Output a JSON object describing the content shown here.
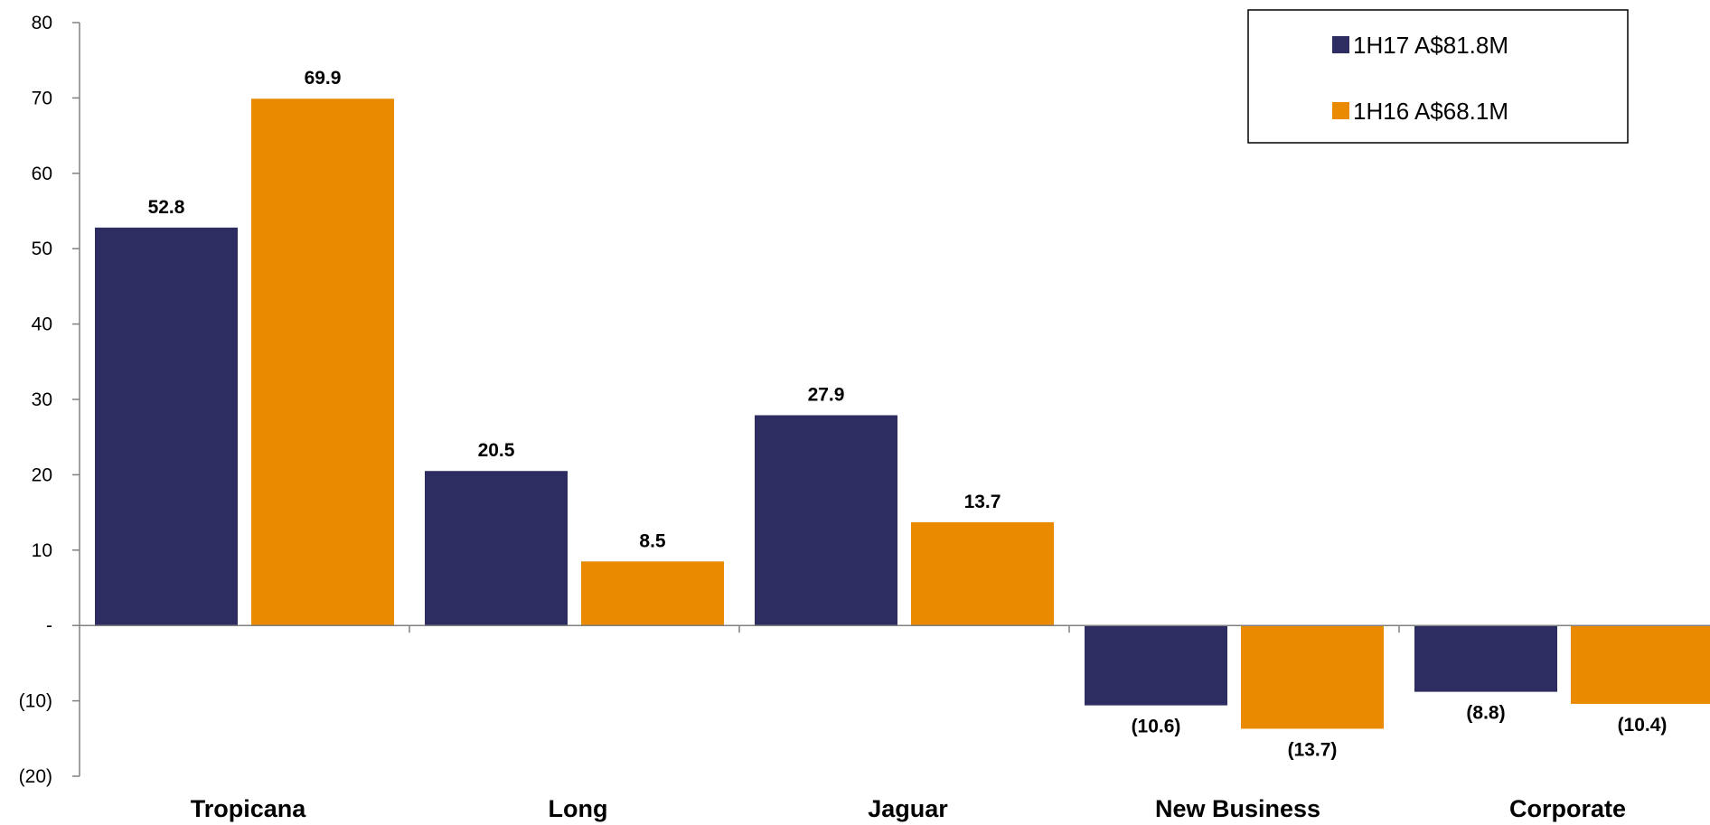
{
  "chart_data": {
    "type": "bar",
    "categories": [
      "Tropicana",
      "Long",
      "Jaguar",
      "New Business",
      "Corporate"
    ],
    "series": [
      {
        "name": "1H17 A$81.8M",
        "values": [
          52.8,
          20.5,
          27.9,
          -10.6,
          -8.8
        ],
        "color": "#2E2D62",
        "labels": [
          "52.8",
          "20.5",
          "27.9",
          "(10.6)",
          "(8.8)"
        ]
      },
      {
        "name": "1H16 A$68.1M",
        "values": [
          69.9,
          8.5,
          13.7,
          -13.7,
          -10.4
        ],
        "color": "#EA8A00",
        "labels": [
          "69.9",
          "8.5",
          "13.7",
          "(13.7)",
          "(10.4)"
        ]
      }
    ],
    "ylim": [
      -20,
      80
    ],
    "yticks": [
      {
        "value": 80,
        "label": "80"
      },
      {
        "value": 70,
        "label": "70"
      },
      {
        "value": 60,
        "label": "60"
      },
      {
        "value": 50,
        "label": "50"
      },
      {
        "value": 40,
        "label": "40"
      },
      {
        "value": 30,
        "label": "30"
      },
      {
        "value": 20,
        "label": "20"
      },
      {
        "value": 10,
        "label": "10"
      },
      {
        "value": 0,
        "label": "-"
      },
      {
        "value": -10,
        "label": "(10)"
      },
      {
        "value": -20,
        "label": "(20)"
      }
    ],
    "legend_position": "top-right",
    "grid": false
  }
}
